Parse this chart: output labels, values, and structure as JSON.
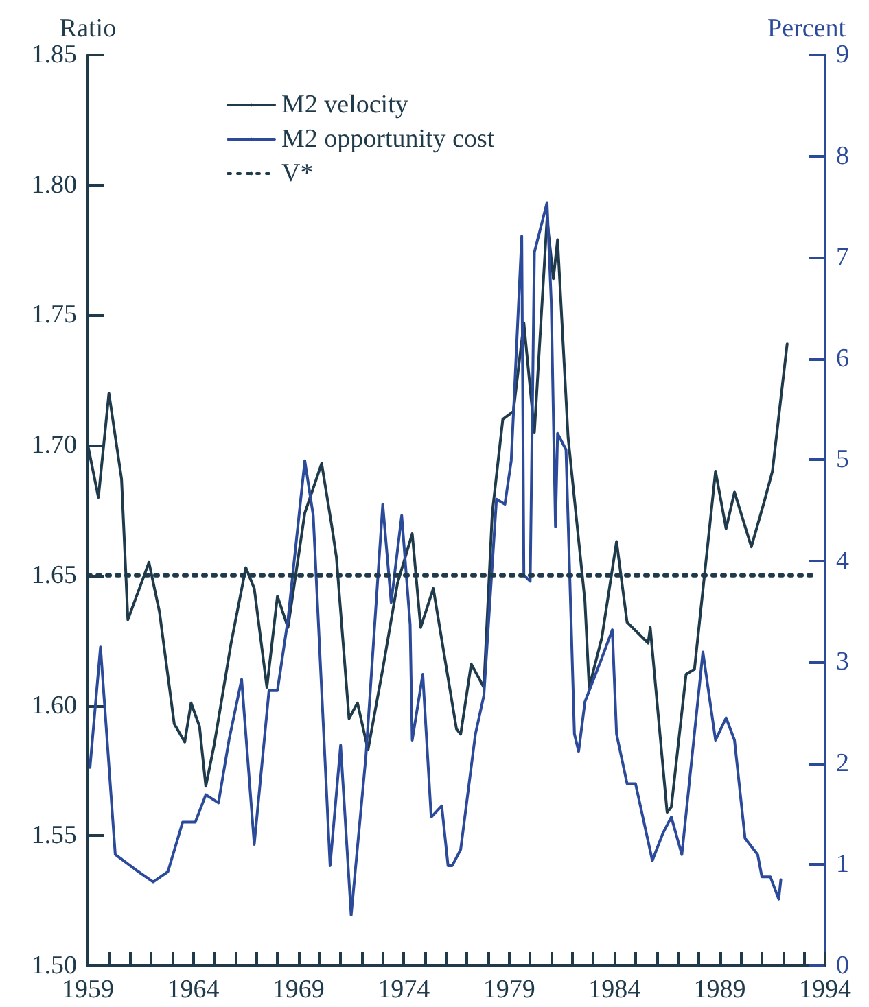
{
  "chart_data": {
    "type": "line",
    "ylabel": "Ratio",
    "y2label": "Percent",
    "xlim": [
      1959,
      1994
    ],
    "ylim": [
      1.5,
      1.85
    ],
    "y2lim": [
      0,
      9
    ],
    "xticks": [
      {
        "value": 1959,
        "label": "1959"
      },
      {
        "value": 1960,
        "label": null
      },
      {
        "value": 1961,
        "label": null
      },
      {
        "value": 1962,
        "label": null
      },
      {
        "value": 1963,
        "label": null
      },
      {
        "value": 1964,
        "label": "1964"
      },
      {
        "value": 1965,
        "label": null
      },
      {
        "value": 1966,
        "label": null
      },
      {
        "value": 1967,
        "label": null
      },
      {
        "value": 1968,
        "label": null
      },
      {
        "value": 1969,
        "label": "1969"
      },
      {
        "value": 1970,
        "label": null
      },
      {
        "value": 1971,
        "label": null
      },
      {
        "value": 1972,
        "label": null
      },
      {
        "value": 1973,
        "label": null
      },
      {
        "value": 1974,
        "label": "1974"
      },
      {
        "value": 1975,
        "label": null
      },
      {
        "value": 1976,
        "label": null
      },
      {
        "value": 1977,
        "label": null
      },
      {
        "value": 1978,
        "label": null
      },
      {
        "value": 1979,
        "label": "1979"
      },
      {
        "value": 1980,
        "label": null
      },
      {
        "value": 1981,
        "label": null
      },
      {
        "value": 1982,
        "label": null
      },
      {
        "value": 1983,
        "label": null
      },
      {
        "value": 1984,
        "label": "1984"
      },
      {
        "value": 1985,
        "label": null
      },
      {
        "value": 1986,
        "label": null
      },
      {
        "value": 1987,
        "label": null
      },
      {
        "value": 1988,
        "label": null
      },
      {
        "value": 1989,
        "label": "1989"
      },
      {
        "value": 1990,
        "label": null
      },
      {
        "value": 1991,
        "label": null
      },
      {
        "value": 1992,
        "label": null
      },
      {
        "value": 1993,
        "label": null
      },
      {
        "value": 1994,
        "label": "1994"
      }
    ],
    "yticks": [
      {
        "value": 1.5,
        "label": "1.50"
      },
      {
        "value": 1.55,
        "label": "1.55"
      },
      {
        "value": 1.6,
        "label": "1.60"
      },
      {
        "value": 1.65,
        "label": "1.65"
      },
      {
        "value": 1.7,
        "label": "1.70"
      },
      {
        "value": 1.75,
        "label": "1.75"
      },
      {
        "value": 1.8,
        "label": "1.80"
      },
      {
        "value": 1.85,
        "label": "1.85"
      }
    ],
    "y2ticks": [
      0,
      1,
      2,
      3,
      4,
      5,
      6,
      7,
      8,
      9
    ],
    "grid": false,
    "legend": "top left",
    "marker": "none",
    "series": [
      {
        "name": "M2 velocity",
        "color": "#1f3a4a",
        "line_style": "solid",
        "x": [
          1959.0,
          1959.5,
          1960.0,
          1960.6,
          1960.9,
          1961.9,
          1962.4,
          1963.1,
          1963.6,
          1963.9,
          1964.3,
          1964.6,
          1965.0,
          1965.8,
          1966.5,
          1966.9,
          1967.5,
          1968.0,
          1968.5,
          1969.3,
          1970.1,
          1970.6,
          1970.8,
          1971.4,
          1971.8,
          1972.3,
          1973.0,
          1973.7,
          1974.4,
          1974.8,
          1975.4,
          1976.5,
          1976.7,
          1977.2,
          1977.8,
          1978.2,
          1978.7,
          1979.2,
          1979.7,
          1980.2,
          1980.8,
          1981.1,
          1981.3,
          1981.8,
          1982.6,
          1982.8,
          1983.4,
          1984.1,
          1984.6,
          1985.6,
          1985.7,
          1986.5,
          1986.7,
          1987.4,
          1987.8,
          1988.8,
          1989.3,
          1989.7,
          1990.5,
          1991.1,
          1991.5,
          1992.2
        ],
        "values": [
          1.7,
          1.68,
          1.72,
          1.687,
          1.633,
          1.655,
          1.636,
          1.593,
          1.586,
          1.601,
          1.592,
          1.569,
          1.585,
          1.624,
          1.653,
          1.645,
          1.607,
          1.642,
          1.63,
          1.674,
          1.693,
          1.668,
          1.657,
          1.595,
          1.601,
          1.583,
          1.614,
          1.647,
          1.666,
          1.63,
          1.645,
          1.591,
          1.589,
          1.616,
          1.607,
          1.674,
          1.71,
          1.713,
          1.747,
          1.705,
          1.787,
          1.764,
          1.779,
          1.703,
          1.64,
          1.607,
          1.626,
          1.663,
          1.632,
          1.624,
          1.63,
          1.559,
          1.561,
          1.612,
          1.614,
          1.69,
          1.668,
          1.682,
          1.661,
          1.678,
          1.69,
          1.739
        ]
      },
      {
        "name": "M2 opportunity cost",
        "color": "#2c4a9a",
        "axis": "y2",
        "line_style": "solid",
        "x": [
          1959.1,
          1959.6,
          1960.3,
          1961.4,
          1962.1,
          1962.8,
          1963.5,
          1964.1,
          1964.6,
          1965.2,
          1965.7,
          1966.3,
          1966.9,
          1967.6,
          1968.0,
          1968.5,
          1969.3,
          1969.7,
          1970.5,
          1971.0,
          1971.5,
          1972.2,
          1973.0,
          1973.4,
          1973.9,
          1974.3,
          1974.4,
          1974.9,
          1975.3,
          1975.8,
          1976.1,
          1976.3,
          1976.7,
          1977.4,
          1977.8,
          1978.4,
          1978.8,
          1979.1,
          1979.6,
          1979.7,
          1980.0,
          1980.2,
          1980.8,
          1981.0,
          1981.2,
          1981.3,
          1981.7,
          1982.1,
          1982.3,
          1982.6,
          1983.4,
          1983.9,
          1984.1,
          1984.6,
          1985.0,
          1985.8,
          1986.3,
          1986.7,
          1987.2,
          1988.2,
          1988.8,
          1989.3,
          1989.7,
          1990.2,
          1990.8,
          1991.0,
          1991.4,
          1991.8,
          1991.9
        ],
        "values": [
          1.96,
          3.15,
          1.1,
          0.93,
          0.83,
          0.93,
          1.42,
          1.42,
          1.69,
          1.61,
          2.23,
          2.83,
          1.2,
          2.72,
          2.72,
          3.42,
          4.99,
          4.45,
          0.99,
          2.18,
          0.5,
          2.07,
          4.56,
          3.59,
          4.45,
          3.37,
          2.23,
          2.88,
          1.47,
          1.58,
          0.99,
          0.99,
          1.15,
          2.29,
          2.67,
          4.61,
          4.56,
          4.99,
          7.21,
          3.86,
          3.8,
          7.05,
          7.54,
          6.56,
          4.34,
          5.26,
          5.1,
          2.29,
          2.12,
          2.61,
          3.04,
          3.32,
          2.29,
          1.8,
          1.8,
          1.04,
          1.31,
          1.47,
          1.1,
          3.1,
          2.23,
          2.45,
          2.23,
          1.26,
          1.1,
          0.88,
          0.88,
          0.66,
          0.85
        ]
      },
      {
        "name": "V*",
        "color": "#1f3a4a",
        "line_style": "dotted",
        "x": [
          1959,
          1993.5
        ],
        "values": [
          1.65,
          1.65
        ]
      }
    ]
  }
}
